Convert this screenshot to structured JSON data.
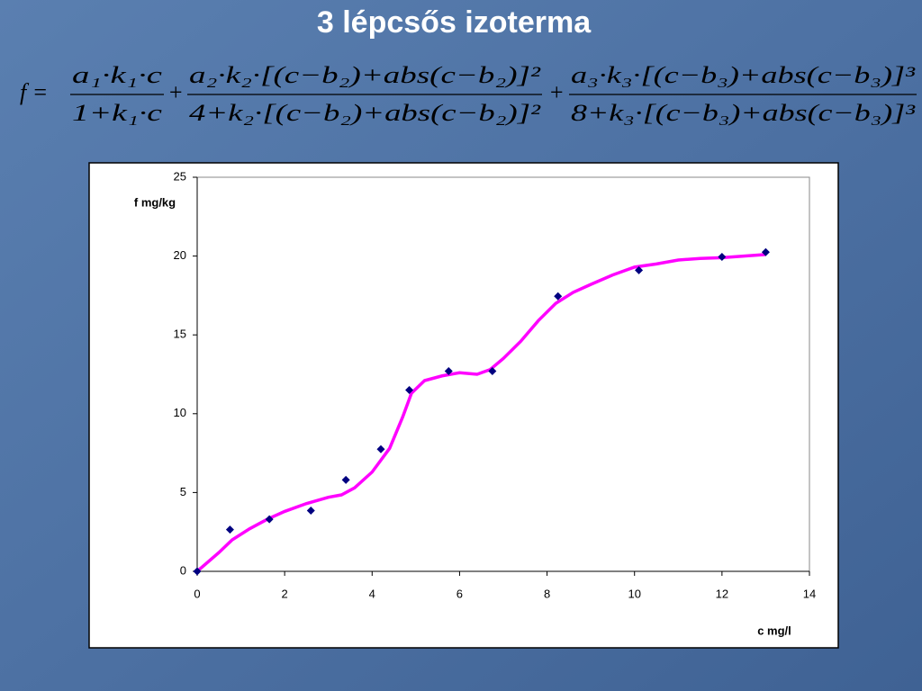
{
  "title": "3 lépcsős izoterma",
  "formula": {
    "lhs": "f =",
    "operators": [
      "+",
      "+"
    ],
    "terms": [
      {
        "numerator": "a₁·k₁·c",
        "denominator": "1+k₁·c"
      },
      {
        "numerator": "a₂·k₂·[(c−b₂)+abs(c−b₂)]²",
        "denominator": "4+k₂·[(c−b₂)+abs(c−b₂)]²"
      },
      {
        "numerator": "a₃·k₃·[(c−b₃)+abs(c−b₃)]³",
        "denominator": "8+k₃·[(c−b₃)+abs(c−b₃)]³"
      }
    ]
  },
  "chart_data": {
    "type": "scatter",
    "x_label": "c mg/l",
    "y_label": "f mg/kg",
    "xlim": [
      0,
      14
    ],
    "xticks": [
      0,
      2,
      4,
      6,
      8,
      10,
      12,
      14
    ],
    "ylim": [
      0,
      25
    ],
    "yticks": [
      0,
      5,
      10,
      15,
      20,
      25
    ],
    "series": [
      {
        "color": "#000080",
        "marker": "diamond",
        "x": [
          0,
          0.75,
          1.65,
          2.6,
          3.4,
          4.2,
          4.85,
          5.75,
          6.75,
          8.25,
          10.1,
          12,
          13
        ],
        "y": [
          0,
          2.65,
          3.3,
          3.85,
          5.8,
          7.75,
          11.5,
          12.7,
          12.7,
          17.45,
          19.1,
          19.95,
          20.25
        ]
      },
      {
        "color": "#ff00ff",
        "marker": "line",
        "x": [
          0,
          0.5,
          0.8,
          1.2,
          1.6,
          2,
          2.5,
          3,
          3.3,
          3.6,
          4,
          4.4,
          4.7,
          4.9,
          5.2,
          5.6,
          6,
          6.4,
          6.7,
          7,
          7.4,
          7.8,
          8.2,
          8.6,
          9,
          9.5,
          10,
          10.5,
          11,
          11.5,
          12,
          12.5,
          13
        ],
        "y": [
          0,
          1.2,
          2.0,
          2.7,
          3.3,
          3.8,
          4.3,
          4.7,
          4.85,
          5.3,
          6.3,
          7.8,
          9.8,
          11.3,
          12.1,
          12.4,
          12.6,
          12.5,
          12.8,
          13.5,
          14.6,
          15.9,
          17.0,
          17.7,
          18.2,
          18.8,
          19.3,
          19.5,
          19.75,
          19.85,
          19.9,
          20.0,
          20.1
        ]
      }
    ]
  }
}
